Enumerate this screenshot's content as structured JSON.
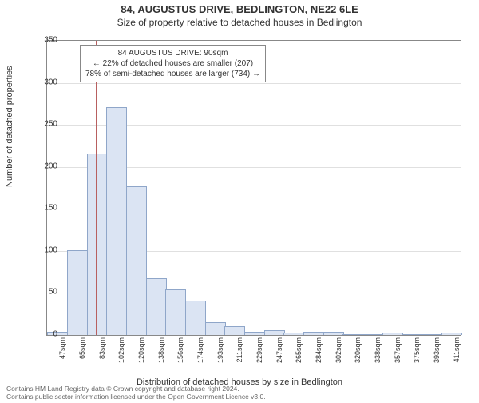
{
  "title": "84, AUGUSTUS DRIVE, BEDLINGTON, NE22 6LE",
  "subtitle": "Size of property relative to detached houses in Bedlington",
  "ylabel": "Number of detached properties",
  "xlabel": "Distribution of detached houses by size in Bedlington",
  "footer_line1": "Contains HM Land Registry data © Crown copyright and database right 2024.",
  "footer_line2": "Contains public sector information licensed under the Open Government Licence v3.0.",
  "chart": {
    "type": "histogram",
    "ylim": [
      0,
      350
    ],
    "ytick_step": 50,
    "bar_fill": "#dbe4f3",
    "bar_stroke": "#8fa6c9",
    "background": "#ffffff",
    "grid_color": "#e0e0e0",
    "marker_value": 90,
    "marker_color": "#b86060",
    "categories": [
      "47sqm",
      "65sqm",
      "83sqm",
      "102sqm",
      "120sqm",
      "138sqm",
      "156sqm",
      "174sqm",
      "193sqm",
      "211sqm",
      "229sqm",
      "247sqm",
      "265sqm",
      "284sqm",
      "302sqm",
      "320sqm",
      "338sqm",
      "357sqm",
      "375sqm",
      "393sqm",
      "411sqm"
    ],
    "values": [
      3,
      100,
      215,
      270,
      176,
      67,
      53,
      40,
      14,
      10,
      3,
      5,
      2,
      3,
      3,
      0,
      0,
      2,
      0,
      0,
      2
    ]
  },
  "infobox": {
    "line1": "84 AUGUSTUS DRIVE: 90sqm",
    "line2": "← 22% of detached houses are smaller (207)",
    "line3": "78% of semi-detached houses are larger (734) →"
  }
}
